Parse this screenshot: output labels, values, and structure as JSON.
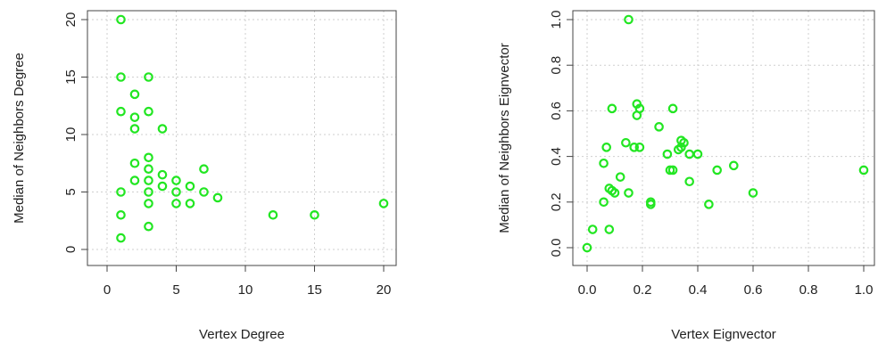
{
  "colors": {
    "points": "#22e622",
    "axis": "#444444",
    "grid": "#cfcfcf",
    "text": "#222222"
  },
  "chart_data": [
    {
      "type": "scatter",
      "xlabel": "Vertex Degree",
      "ylabel": "Median of Neighbors Degree",
      "xlim": [
        0,
        20
      ],
      "ylim": [
        0,
        20
      ],
      "xticks": [
        0,
        5,
        10,
        15,
        20
      ],
      "yticks": [
        0,
        5,
        10,
        15,
        20
      ],
      "xtick_labels": [
        "0",
        "5",
        "10",
        "15",
        "20"
      ],
      "ytick_labels": [
        "0",
        "5",
        "10",
        "15",
        "20"
      ],
      "grid": true,
      "points": [
        [
          1,
          20
        ],
        [
          1,
          15
        ],
        [
          1,
          12
        ],
        [
          1,
          5
        ],
        [
          1,
          3
        ],
        [
          1,
          1
        ],
        [
          2,
          13.5
        ],
        [
          2,
          11.5
        ],
        [
          2,
          10.5
        ],
        [
          2,
          7.5
        ],
        [
          2,
          6
        ],
        [
          3,
          15
        ],
        [
          3,
          12
        ],
        [
          3,
          8
        ],
        [
          3,
          7
        ],
        [
          3,
          6
        ],
        [
          3,
          5
        ],
        [
          3,
          4
        ],
        [
          3,
          2
        ],
        [
          4,
          10.5
        ],
        [
          4,
          6.5
        ],
        [
          4,
          5.5
        ],
        [
          5,
          6
        ],
        [
          5,
          5
        ],
        [
          5,
          4
        ],
        [
          6,
          5.5
        ],
        [
          6,
          4
        ],
        [
          7,
          7
        ],
        [
          7,
          5
        ],
        [
          8,
          4.5
        ],
        [
          12,
          3
        ],
        [
          15,
          3
        ],
        [
          20,
          4
        ]
      ]
    },
    {
      "type": "scatter",
      "xlabel": "Vertex Eignvector",
      "ylabel": "Median of Neighbors Eignvector",
      "xlim": [
        0,
        1
      ],
      "ylim": [
        0,
        1
      ],
      "xticks": [
        0,
        0.2,
        0.4,
        0.6,
        0.8,
        1.0
      ],
      "yticks": [
        0,
        0.2,
        0.4,
        0.6,
        0.8,
        1.0
      ],
      "xtick_labels": [
        "0.0",
        "0.2",
        "0.4",
        "0.6",
        "0.8",
        "1.0"
      ],
      "ytick_labels": [
        "0.0",
        "0.2",
        "0.4",
        "0.6",
        "0.8",
        "1.0"
      ],
      "grid": true,
      "points": [
        [
          0.15,
          1.0
        ],
        [
          0.09,
          0.61
        ],
        [
          0.31,
          0.61
        ],
        [
          0.18,
          0.63
        ],
        [
          0.19,
          0.61
        ],
        [
          0.18,
          0.58
        ],
        [
          0.26,
          0.53
        ],
        [
          0.14,
          0.46
        ],
        [
          0.17,
          0.44
        ],
        [
          0.19,
          0.44
        ],
        [
          0.07,
          0.44
        ],
        [
          0.34,
          0.47
        ],
        [
          0.35,
          0.46
        ],
        [
          0.34,
          0.44
        ],
        [
          0.33,
          0.43
        ],
        [
          0.37,
          0.41
        ],
        [
          0.4,
          0.41
        ],
        [
          0.29,
          0.41
        ],
        [
          0.06,
          0.37
        ],
        [
          0.53,
          0.36
        ],
        [
          0.47,
          0.34
        ],
        [
          0.3,
          0.34
        ],
        [
          0.31,
          0.34
        ],
        [
          0.12,
          0.31
        ],
        [
          0.37,
          0.29
        ],
        [
          0.08,
          0.26
        ],
        [
          0.09,
          0.25
        ],
        [
          0.1,
          0.24
        ],
        [
          0.15,
          0.24
        ],
        [
          0.6,
          0.24
        ],
        [
          0.06,
          0.2
        ],
        [
          0.23,
          0.2
        ],
        [
          0.23,
          0.19
        ],
        [
          0.44,
          0.19
        ],
        [
          0.02,
          0.08
        ],
        [
          0.08,
          0.08
        ],
        [
          0.0,
          0.0
        ],
        [
          1.0,
          0.34
        ]
      ]
    }
  ]
}
